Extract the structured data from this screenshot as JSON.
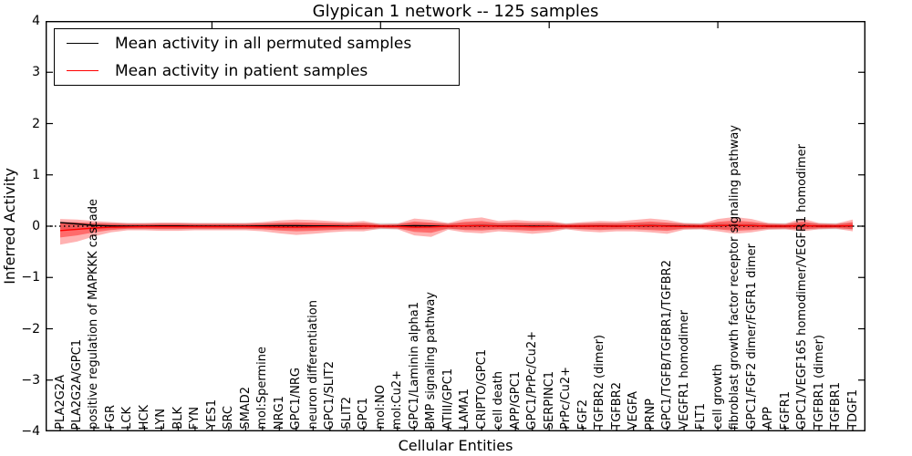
{
  "figure": {
    "title": "Glypican 1 network -- 125 samples",
    "xlabel": "Cellular Entities",
    "ylabel": "Inferred Activity"
  },
  "legend": {
    "items": [
      {
        "label": "Mean activity in all permuted samples",
        "color": "#000000"
      },
      {
        "label": "Mean activity in patient samples",
        "color": "#ff0000"
      }
    ]
  },
  "chart_data": {
    "type": "line",
    "title": "Glypican 1 network -- 125 samples",
    "xlabel": "Cellular Entities",
    "ylabel": "Inferred Activity",
    "ylim": [
      -4,
      4
    ],
    "yticks": [
      4,
      3,
      2,
      1,
      0,
      -1,
      -2,
      -3,
      -4
    ],
    "grid": false,
    "legend_position": "upper left",
    "top_tick_indices": [
      9,
      19,
      29,
      39
    ],
    "zero_line": {
      "y": 0,
      "style": "dotted",
      "color": "#000000"
    },
    "categories": [
      "PLA2G2A",
      "PLA2G2A/GPC1",
      "positive regulation of MAPKKK cascade",
      "FGR",
      "LCK",
      "HCK",
      "LYN",
      "BLK",
      "FYN",
      "YES1",
      "SRC",
      "SMAD2",
      "mol:Spermine",
      "NRG1",
      "GPC1/NRG",
      "neuron differentiation",
      "GPC1/SLIT2",
      "SLIT2",
      "GPC1",
      "mol:NO",
      "mol:Cu2+",
      "GPC1/Laminin alpha1",
      "BMP signaling pathway",
      "ATIII/GPC1",
      "LAMA1",
      "CRIPTO/GPC1",
      "cell death",
      "APP/GPC1",
      "GPC1/PrPc/Cu2+",
      "SERPINC1",
      "PrPc/Cu2+",
      "FGF2",
      "TGFBR2 (dimer)",
      "TGFBR2",
      "VEGFA",
      "PRNP",
      "GPC1/TGFB/TGFBR1/TGFBR2",
      "VEGFR1 homodimer",
      "FLT1",
      "cell growth",
      "fibroblast growth factor receptor signaling pathway",
      "GPC1/FGF2 dimer/FGFR1 dimer",
      "APP",
      "FGFR1",
      "GPC1/VEGF165 homodimer/VEGFR1 homodimer",
      "TGFBR1 (dimer)",
      "TGFBR1",
      "TDGF1"
    ],
    "series": [
      {
        "name": "Mean activity in all permuted samples",
        "color": "#000000",
        "values": [
          0.07,
          0.045,
          0.015,
          0.005,
          0.0,
          0.0,
          0.005,
          0.005,
          0.0,
          0.0,
          0.0,
          0.0,
          0.005,
          0.01,
          0.01,
          0.005,
          0.005,
          0.0,
          0.005,
          0.0,
          0.0,
          0.01,
          0.005,
          0.0,
          0.005,
          0.01,
          0.005,
          0.005,
          0.0,
          0.0,
          0.0,
          0.0,
          0.005,
          0.0,
          0.005,
          0.01,
          0.005,
          0.0,
          0.0,
          0.01,
          0.015,
          0.01,
          0.0,
          0.0,
          0.01,
          0.0,
          0.0,
          0.005
        ]
      },
      {
        "name": "Mean activity in patient samples",
        "color": "#ff0000",
        "values": [
          -0.085,
          -0.06,
          -0.035,
          -0.02,
          -0.015,
          -0.01,
          -0.01,
          -0.01,
          -0.01,
          -0.01,
          -0.01,
          -0.01,
          -0.015,
          -0.02,
          -0.02,
          -0.015,
          -0.01,
          -0.01,
          0.0,
          0.0,
          -0.005,
          -0.02,
          -0.015,
          0.0,
          0.005,
          0.01,
          0.0,
          0.0,
          -0.01,
          -0.005,
          0.0,
          0.0,
          0.0,
          0.0,
          0.005,
          0.01,
          0.0,
          -0.005,
          0.0,
          0.01,
          0.02,
          0.01,
          0.0,
          0.0,
          0.01,
          0.0,
          0.0,
          0.01
        ]
      }
    ],
    "bands": [
      {
        "name": "permuted samples range",
        "color": "rgba(0,0,0,0.15)",
        "upper": 0.06,
        "lower": -0.06
      },
      {
        "name": "patient samples outer range",
        "color": "rgba(255,0,0,0.30)",
        "upper": [
          0.14,
          0.13,
          0.1,
          0.08,
          0.06,
          0.06,
          0.07,
          0.07,
          0.06,
          0.06,
          0.06,
          0.06,
          0.08,
          0.11,
          0.13,
          0.12,
          0.1,
          0.08,
          0.1,
          0.04,
          0.05,
          0.15,
          0.12,
          0.06,
          0.14,
          0.17,
          0.1,
          0.12,
          0.1,
          0.1,
          0.05,
          0.08,
          0.1,
          0.09,
          0.12,
          0.15,
          0.12,
          0.06,
          0.05,
          0.14,
          0.18,
          0.14,
          0.06,
          0.05,
          0.15,
          0.06,
          0.05,
          0.13
        ],
        "lower": [
          -0.36,
          -0.3,
          -0.2,
          -0.12,
          -0.08,
          -0.08,
          -0.09,
          -0.09,
          -0.08,
          -0.08,
          -0.08,
          -0.08,
          -0.1,
          -0.14,
          -0.17,
          -0.15,
          -0.12,
          -0.1,
          -0.1,
          -0.05,
          -0.06,
          -0.18,
          -0.21,
          -0.07,
          -0.12,
          -0.14,
          -0.1,
          -0.12,
          -0.15,
          -0.12,
          -0.06,
          -0.1,
          -0.12,
          -0.1,
          -0.1,
          -0.12,
          -0.15,
          -0.07,
          -0.06,
          -0.1,
          -0.15,
          -0.12,
          -0.07,
          -0.06,
          -0.1,
          -0.06,
          -0.05,
          -0.1
        ]
      },
      {
        "name": "patient samples inner range",
        "color": "rgba(255,0,0,0.40)",
        "upper": [
          0.08,
          0.075,
          0.06,
          0.05,
          0.04,
          0.04,
          0.045,
          0.045,
          0.04,
          0.04,
          0.04,
          0.04,
          0.05,
          0.065,
          0.075,
          0.07,
          0.06,
          0.05,
          0.06,
          0.025,
          0.03,
          0.09,
          0.07,
          0.04,
          0.085,
          0.1,
          0.06,
          0.07,
          0.06,
          0.06,
          0.03,
          0.05,
          0.06,
          0.055,
          0.07,
          0.09,
          0.07,
          0.04,
          0.03,
          0.085,
          0.11,
          0.085,
          0.04,
          0.03,
          0.09,
          0.04,
          0.03,
          0.08
        ],
        "lower": [
          -0.22,
          -0.18,
          -0.12,
          -0.075,
          -0.05,
          -0.05,
          -0.055,
          -0.055,
          -0.05,
          -0.05,
          -0.05,
          -0.05,
          -0.06,
          -0.085,
          -0.1,
          -0.09,
          -0.075,
          -0.06,
          -0.06,
          -0.03,
          -0.04,
          -0.11,
          -0.13,
          -0.045,
          -0.075,
          -0.085,
          -0.06,
          -0.075,
          -0.09,
          -0.075,
          -0.04,
          -0.06,
          -0.075,
          -0.06,
          -0.06,
          -0.075,
          -0.09,
          -0.045,
          -0.04,
          -0.06,
          -0.09,
          -0.075,
          -0.045,
          -0.04,
          -0.06,
          -0.04,
          -0.03,
          -0.06
        ]
      }
    ]
  }
}
